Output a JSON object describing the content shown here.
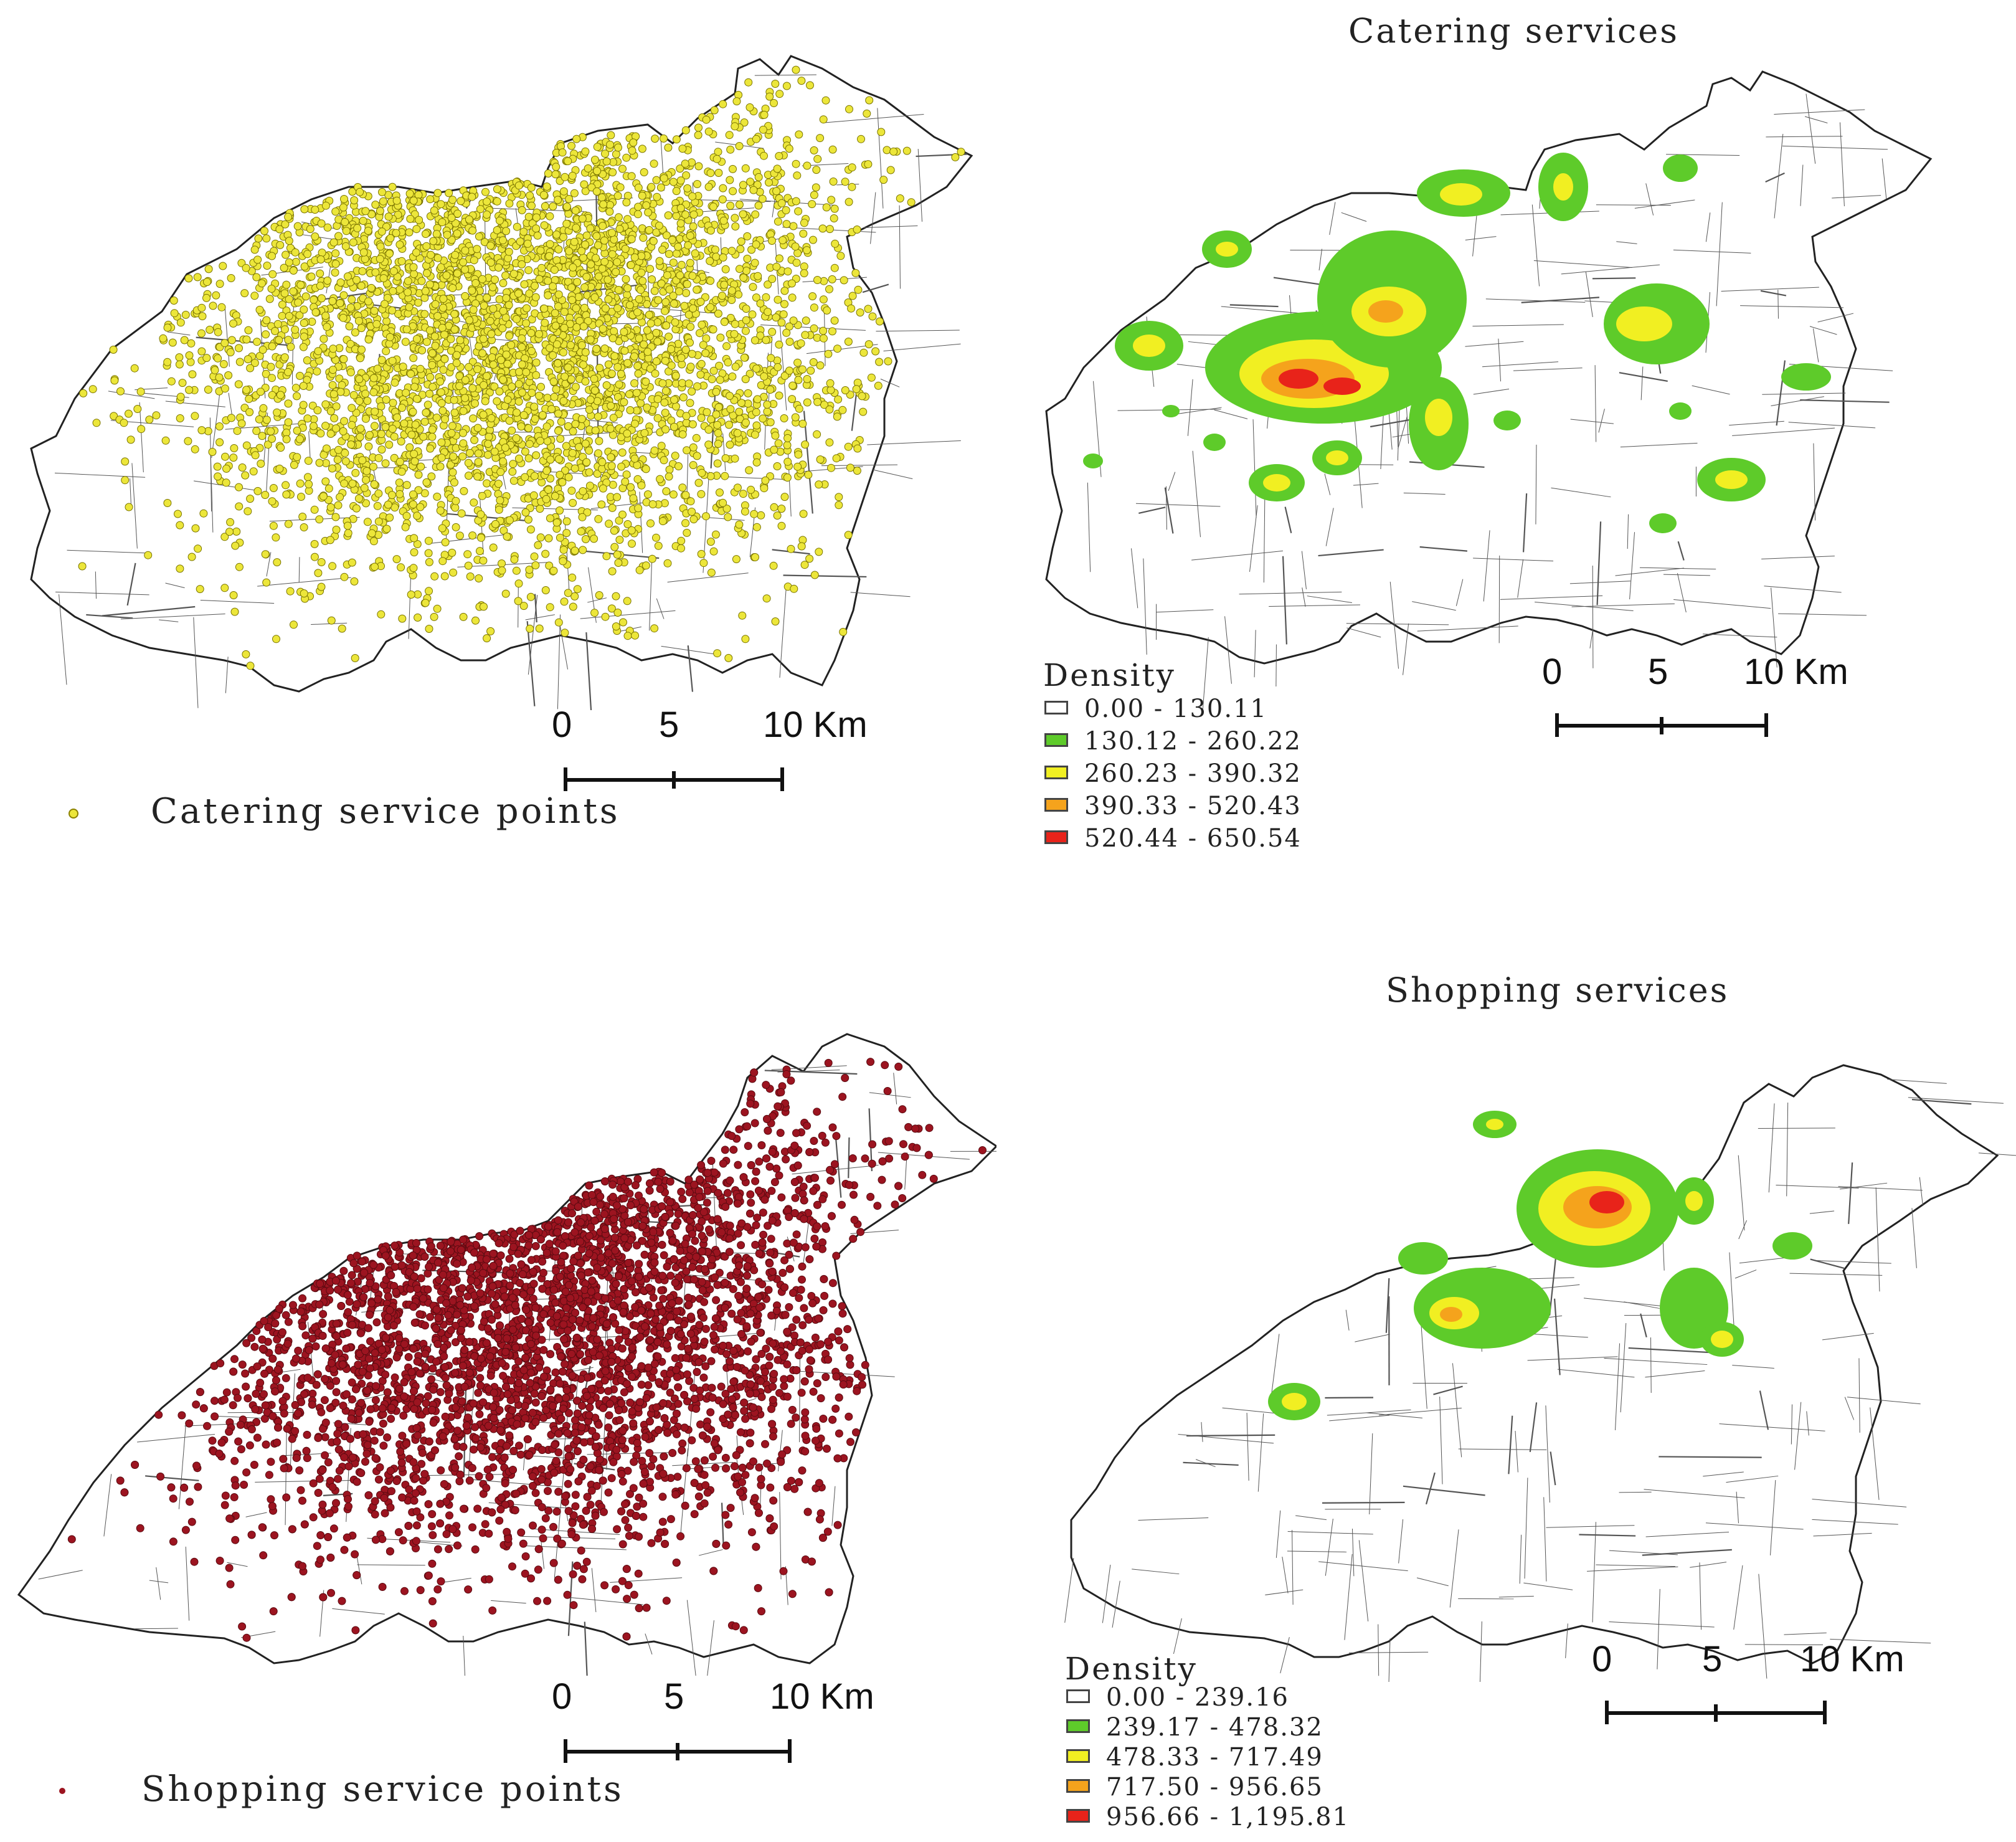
{
  "colors": {
    "catering_points": "#ece63a",
    "shopping_points": "#9c1420",
    "density_classes": [
      "#ffffff",
      "#5ecb2a",
      "#f1ef22",
      "#f5a31c",
      "#e8231a"
    ],
    "roads": "#555555",
    "boundary": "#222222"
  },
  "panels": {
    "catering_points": {
      "legend_label": "Catering service points",
      "scale": {
        "labels": [
          "0",
          "5",
          "10 Km"
        ]
      }
    },
    "catering_density": {
      "title": "Catering services",
      "legend_title": "Density",
      "classes": [
        "0.00 - 130.11",
        "130.12 - 260.22",
        "260.23 - 390.32",
        "390.33 - 520.43",
        "520.44 - 650.54"
      ],
      "scale": {
        "labels": [
          "0",
          "5",
          "10 Km"
        ]
      }
    },
    "shopping_points": {
      "legend_label": "Shopping service points",
      "scale": {
        "labels": [
          "0",
          "5",
          "10 Km"
        ]
      }
    },
    "shopping_density": {
      "title": "Shopping services",
      "legend_title": "Density",
      "classes": [
        "0.00 - 239.16",
        "239.17 - 478.32",
        "478.33 - 717.49",
        "717.50 - 956.65",
        "956.66 - 1,195.81"
      ],
      "scale": {
        "labels": [
          "0",
          "5",
          "10 Km"
        ]
      }
    }
  }
}
